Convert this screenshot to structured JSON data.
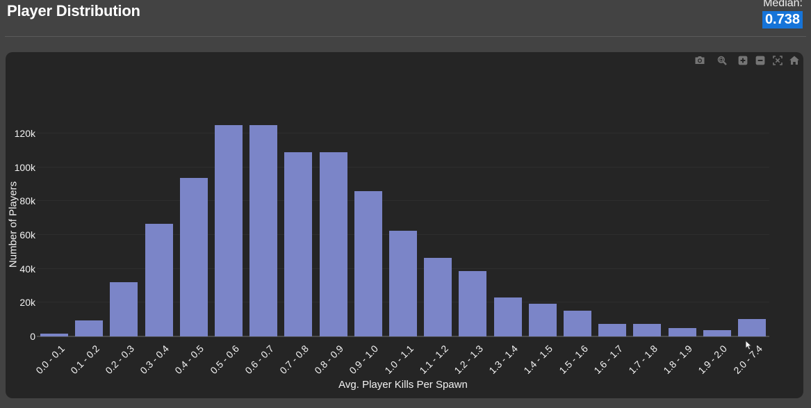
{
  "page": {
    "title": "Player Distribution"
  },
  "median": {
    "label": "Median:",
    "value": "0.738",
    "highlight_color": "#1674d9"
  },
  "toolbar": {
    "buttons": [
      {
        "name": "download-plot",
        "icon": "camera-icon"
      },
      {
        "name": "zoom",
        "icon": "magnifier-icon"
      },
      {
        "name": "zoom-in",
        "icon": "plus-box-icon"
      },
      {
        "name": "zoom-out",
        "icon": "minus-box-icon"
      },
      {
        "name": "autoscale",
        "icon": "expand-icon"
      },
      {
        "name": "reset-axes",
        "icon": "home-icon"
      }
    ]
  },
  "chart_data": {
    "type": "bar",
    "title": "",
    "categories": [
      "0.0 - 0.1",
      "0.1 - 0.2",
      "0.2 - 0.3",
      "0.3 - 0.4",
      "0.4 - 0.5",
      "0.5 - 0.6",
      "0.6 - 0.7",
      "0.7 - 0.8",
      "0.8 - 0.9",
      "0.9 - 1.0",
      "1.0 - 1.1",
      "1.1 - 1.2",
      "1.2 - 1.3",
      "1.3 - 1.4",
      "1.4 - 1.5",
      "1.5 - 1.6",
      "1.6 - 1.7",
      "1.7 - 1.8",
      "1.8 - 1.9",
      "1.9 - 2.0",
      "2.0 - 7.4"
    ],
    "values": [
      1500,
      9300,
      32200,
      66400,
      93500,
      124800,
      124800,
      109000,
      109000,
      86000,
      62300,
      46400,
      38800,
      23000,
      19200,
      15200,
      7500,
      7500,
      4800,
      3800,
      10300
    ],
    "xlabel": "Avg. Player Kills Per Spawn",
    "ylabel": "Number of Players",
    "ylim": [
      0,
      143400
    ],
    "yticks": [
      {
        "value": 0,
        "label": "0"
      },
      {
        "value": 20000,
        "label": "20k"
      },
      {
        "value": 40000,
        "label": "40k"
      },
      {
        "value": 60000,
        "label": "60k"
      },
      {
        "value": 80000,
        "label": "80k"
      },
      {
        "value": 100000,
        "label": "100k"
      },
      {
        "value": 120000,
        "label": "120k"
      }
    ],
    "bar_color": "#7b85c8",
    "grid": true,
    "legend": false,
    "background": "#252525"
  }
}
